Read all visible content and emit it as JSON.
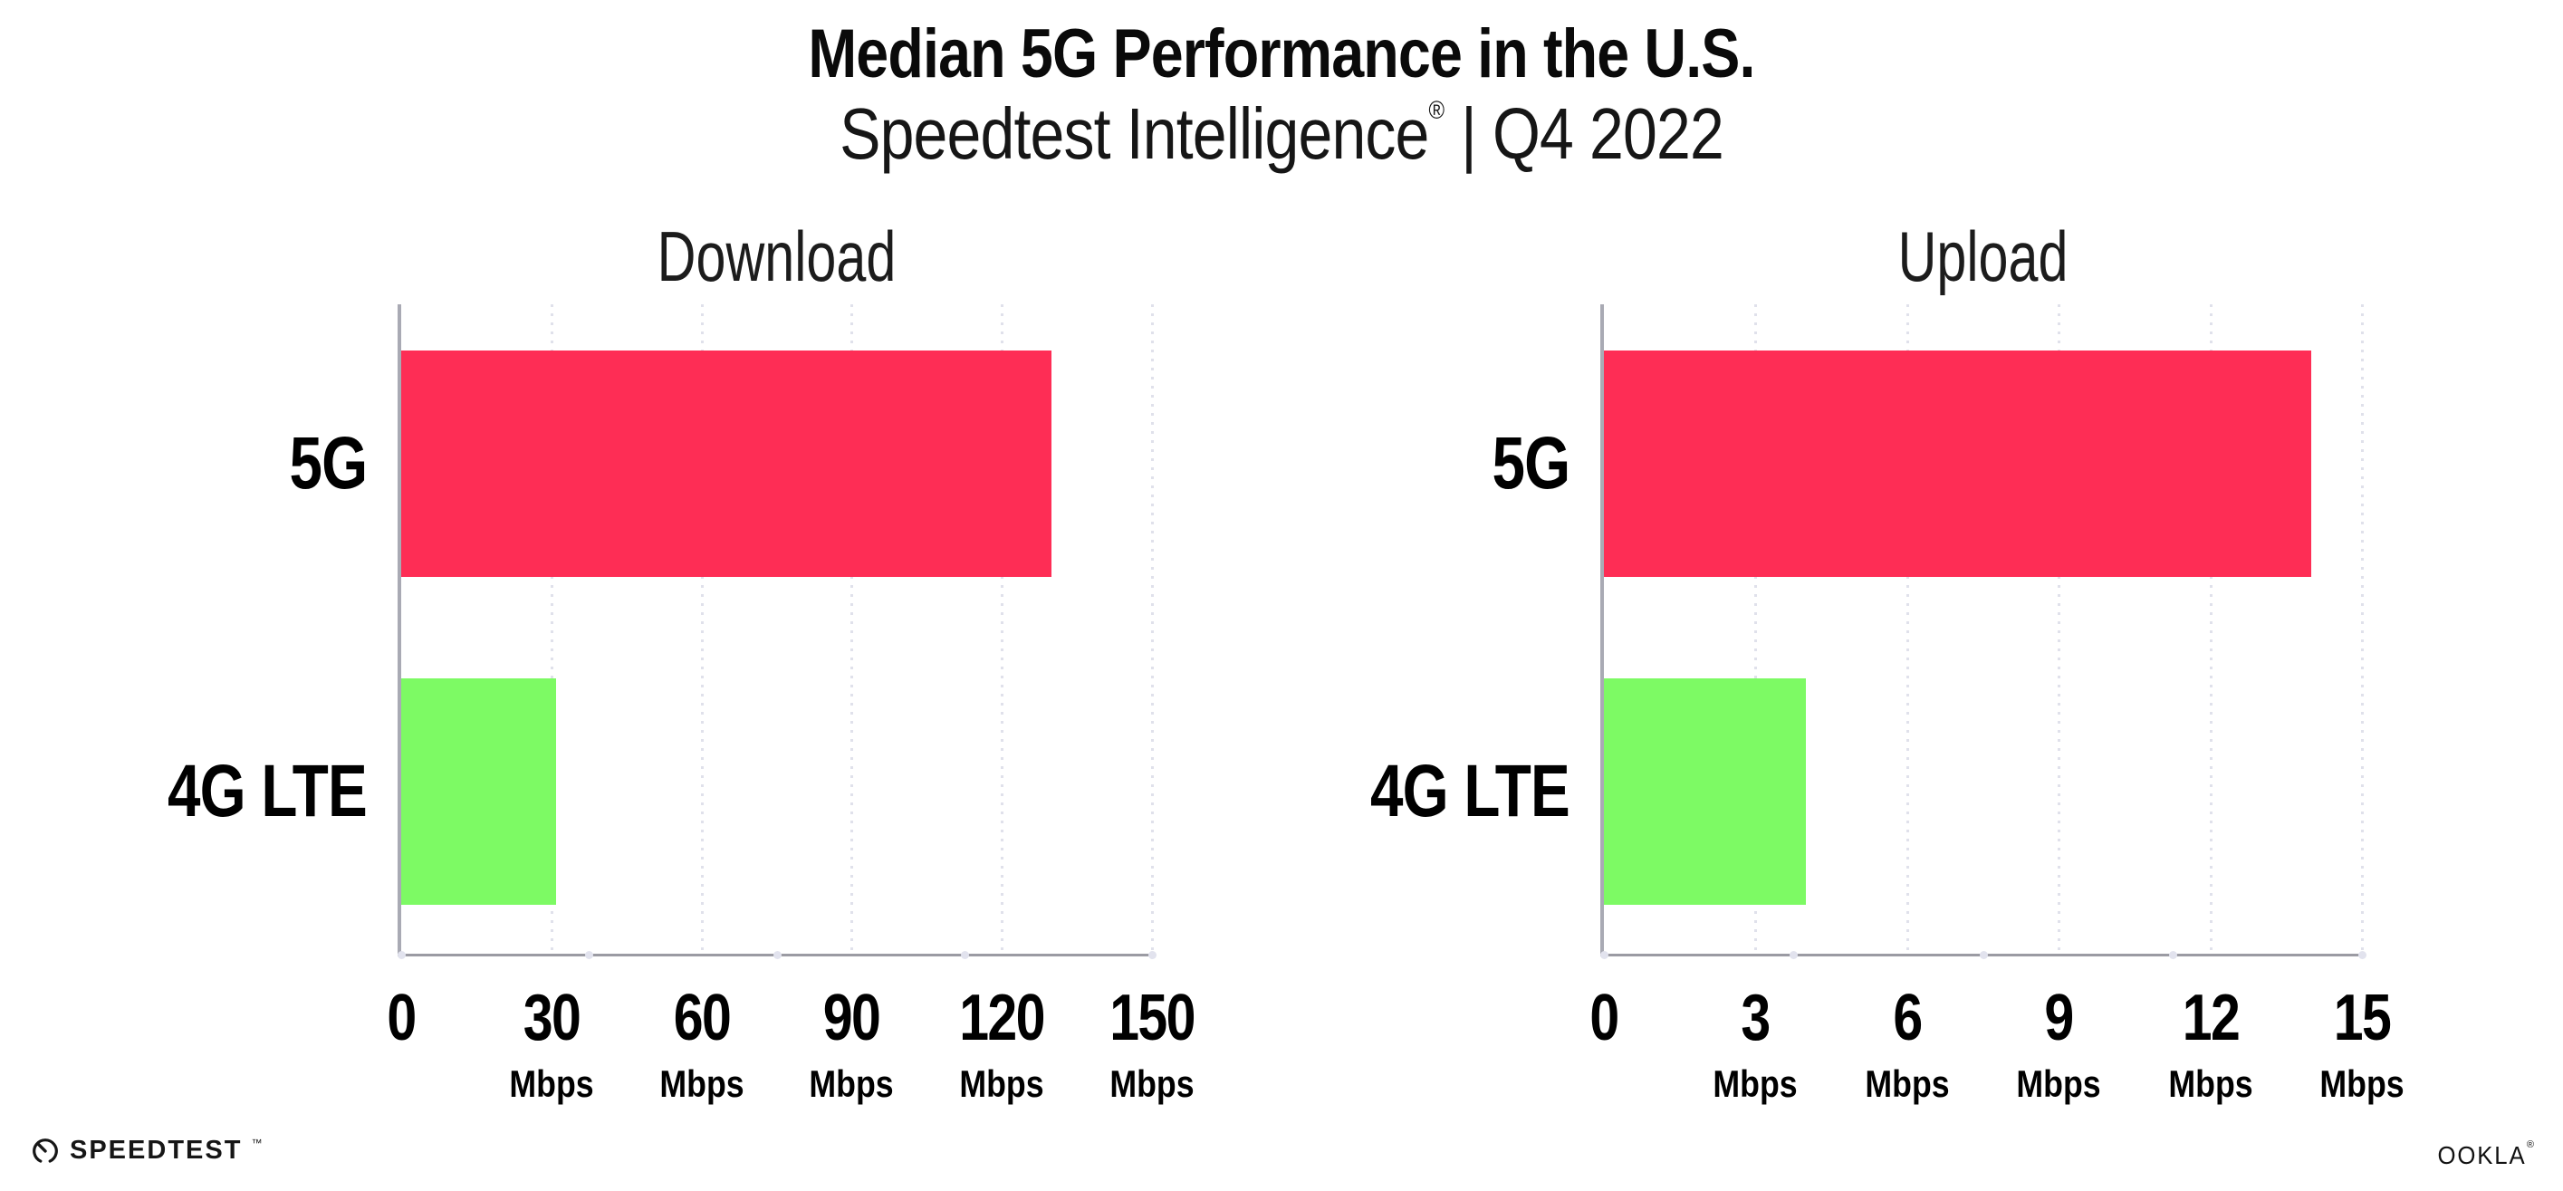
{
  "header": {
    "title": "Median 5G Performance in the U.S.",
    "subtitle_brand": "Speedtest Intelligence",
    "subtitle_reg": "®",
    "subtitle_rest": " | Q4 2022"
  },
  "chart_data": [
    {
      "type": "bar",
      "orientation": "horizontal",
      "title": "Download",
      "categories": [
        "5G",
        "4G LTE"
      ],
      "values": [
        130,
        31
      ],
      "unit": "Mbps",
      "xlim": [
        0,
        150
      ],
      "xticks": [
        0,
        30,
        60,
        90,
        120,
        150
      ],
      "bar_colors": [
        "#fe2d55",
        "#7dfa64"
      ],
      "grid": "vertical-dotted",
      "legend": "none"
    },
    {
      "type": "bar",
      "orientation": "horizontal",
      "title": "Upload",
      "categories": [
        "5G",
        "4G LTE"
      ],
      "values": [
        14,
        4
      ],
      "unit": "Mbps",
      "xlim": [
        0,
        15
      ],
      "xticks": [
        0,
        3,
        6,
        9,
        12,
        15
      ],
      "bar_colors": [
        "#fe2d55",
        "#7dfa64"
      ],
      "grid": "vertical-dotted",
      "legend": "none"
    }
  ],
  "footer": {
    "speedtest_text": "SPEEDTEST",
    "speedtest_tm": "™",
    "ookla_text": "OOKLA",
    "ookla_reg": "®"
  },
  "colors": {
    "bar_5g": "#fe2d55",
    "bar_4g_lte": "#7dfa64",
    "axis": "#9b9ba3",
    "gridline": "#e0e1eb",
    "text": "#000000",
    "background": "#ffffff"
  }
}
